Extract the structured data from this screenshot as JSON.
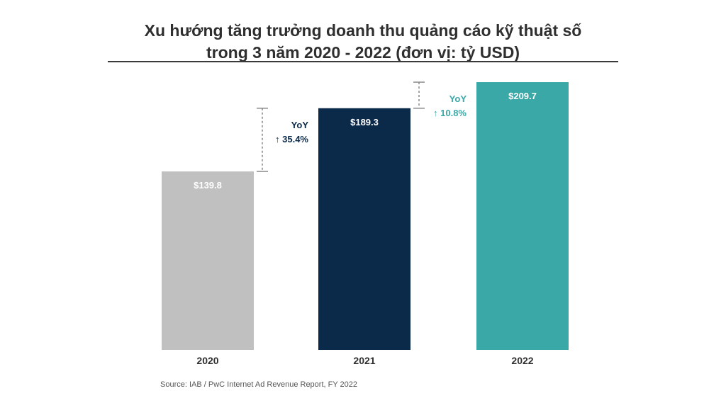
{
  "title_lines": [
    "Xu hướng tăng trưởng doanh thu quảng cáo kỹ thuật số",
    "trong 3 năm 2020 - 2022 (đơn vị: tỷ USD)"
  ],
  "source": "Source: IAB / PwC Internet Ad Revenue Report, FY 2022",
  "colors": {
    "bar_2020": "#c0c0c0",
    "bar_2021": "#0b2a4a",
    "bar_2022": "#3aa8a7",
    "yoy_2021": "#0b2a4a",
    "yoy_2022": "#3aa8a7"
  },
  "chart_data": {
    "type": "bar",
    "categories": [
      "2020",
      "2021",
      "2022"
    ],
    "values": [
      139.8,
      189.3,
      209.7
    ],
    "data_labels": [
      "$139.8",
      "$189.3",
      "$209.7"
    ],
    "ylim": [
      0,
      209.7
    ],
    "grid": false,
    "annotations": [
      {
        "label": "YoY",
        "value": "↑ 35.4%",
        "from": "2020",
        "to": "2021"
      },
      {
        "label": "YoY",
        "value": "↑ 10.8%",
        "from": "2021",
        "to": "2022"
      }
    ]
  }
}
